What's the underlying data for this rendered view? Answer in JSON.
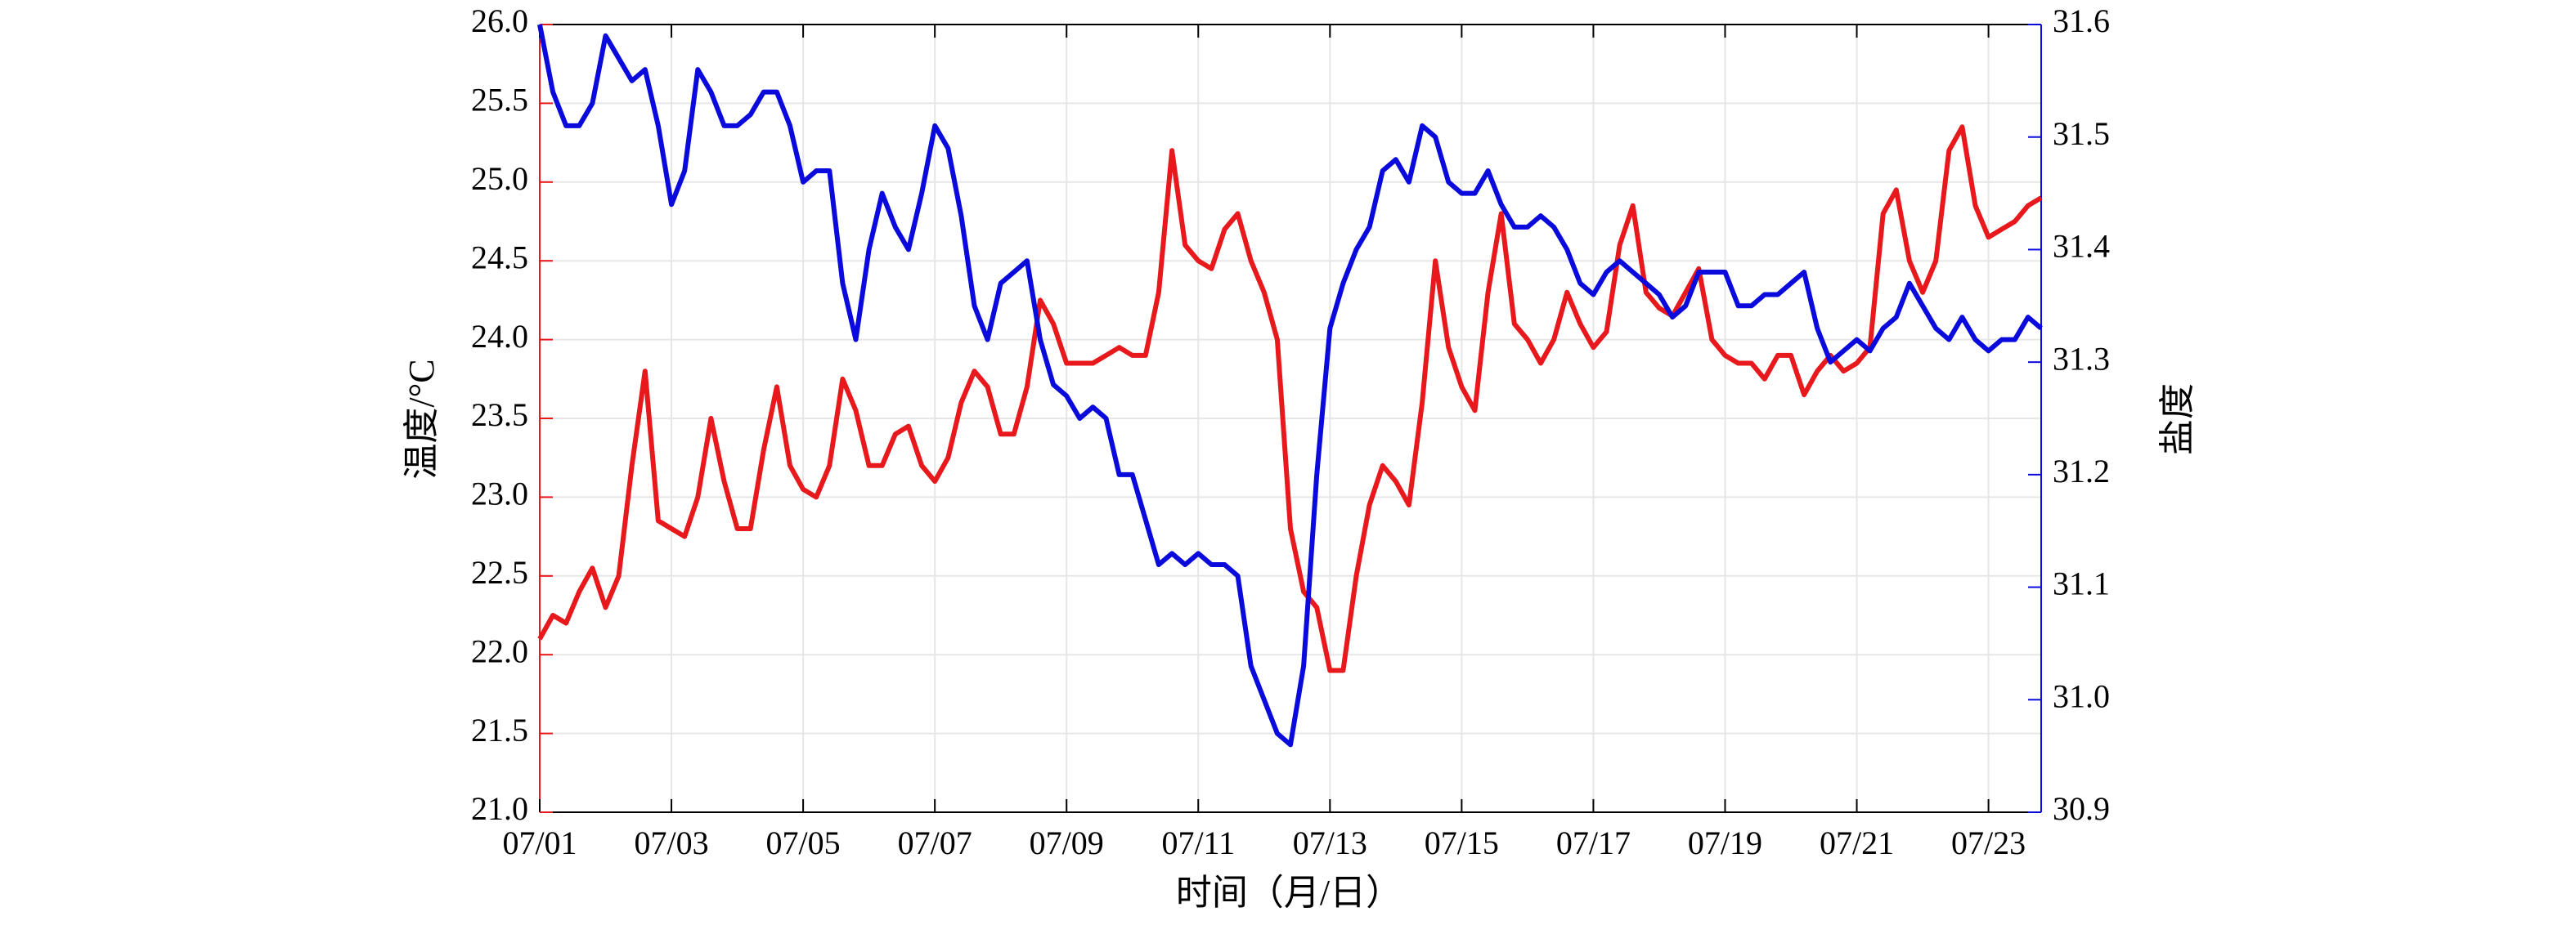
{
  "chart_data": {
    "type": "line",
    "x_label": "时间（月/日）",
    "y_label": "温度/°C",
    "y2_label": "盐度",
    "x": [
      1,
      1.2,
      1.4,
      1.6,
      1.8,
      2,
      2.2,
      2.4,
      2.6,
      2.8,
      3,
      3.2,
      3.4,
      3.6,
      3.8,
      4,
      4.2,
      4.4,
      4.6,
      4.8,
      5,
      5.2,
      5.4,
      5.6,
      5.8,
      6,
      6.2,
      6.4,
      6.6,
      6.8,
      7,
      7.2,
      7.4,
      7.6,
      7.8,
      8,
      8.2,
      8.4,
      8.6,
      8.8,
      9,
      9.2,
      9.4,
      9.6,
      9.8,
      10,
      10.2,
      10.4,
      10.6,
      10.8,
      11,
      11.2,
      11.4,
      11.6,
      11.8,
      12,
      12.2,
      12.4,
      12.6,
      12.8,
      13,
      13.2,
      13.4,
      13.6,
      13.8,
      14,
      14.2,
      14.4,
      14.6,
      14.8,
      15,
      15.2,
      15.4,
      15.6,
      15.8,
      16,
      16.2,
      16.4,
      16.6,
      16.8,
      17,
      17.2,
      17.4,
      17.6,
      17.8,
      18,
      18.2,
      18.4,
      18.6,
      18.8,
      19,
      19.2,
      19.4,
      19.6,
      19.8,
      20,
      20.2,
      20.4,
      20.6,
      20.8,
      21,
      21.2,
      21.4,
      21.6,
      21.8,
      22,
      22.2,
      22.4,
      22.6,
      22.8,
      23,
      23.2,
      23.4,
      23.6,
      23.8
    ],
    "series": [
      {
        "name": "温度",
        "color": "#e8191c",
        "values": [
          22.1,
          22.25,
          22.2,
          22.4,
          22.55,
          22.3,
          22.5,
          23.2,
          23.8,
          22.85,
          22.8,
          22.75,
          23.0,
          23.5,
          23.1,
          22.8,
          22.8,
          23.3,
          23.7,
          23.2,
          23.05,
          23.0,
          23.2,
          23.75,
          23.55,
          23.2,
          23.2,
          23.4,
          23.45,
          23.2,
          23.1,
          23.25,
          23.6,
          23.8,
          23.7,
          23.4,
          23.4,
          23.7,
          24.25,
          24.1,
          23.85,
          23.85,
          23.85,
          23.9,
          23.95,
          23.9,
          23.9,
          24.3,
          25.2,
          24.6,
          24.5,
          24.45,
          24.7,
          24.8,
          24.5,
          24.3,
          24.0,
          22.8,
          22.4,
          22.3,
          21.9,
          21.9,
          22.5,
          22.95,
          23.2,
          23.1,
          22.95,
          23.6,
          24.5,
          23.95,
          23.7,
          23.55,
          24.3,
          24.8,
          24.1,
          24.0,
          23.85,
          24.0,
          24.3,
          24.1,
          23.95,
          24.05,
          24.6,
          24.85,
          24.3,
          24.2,
          24.15,
          24.3,
          24.45,
          24.0,
          23.9,
          23.85,
          23.85,
          23.75,
          23.9,
          23.9,
          23.65,
          23.8,
          23.9,
          23.8,
          23.85,
          23.95,
          24.8,
          24.95,
          24.5,
          24.3,
          24.5,
          25.2,
          25.35,
          24.85,
          24.65,
          24.7,
          24.75,
          24.85,
          24.9
        ]
      },
      {
        "name": "盐度",
        "color": "#0a0adc",
        "axis": "y2",
        "values": [
          31.6,
          31.54,
          31.51,
          31.51,
          31.53,
          31.59,
          31.57,
          31.55,
          31.56,
          31.51,
          31.44,
          31.47,
          31.56,
          31.54,
          31.51,
          31.51,
          31.52,
          31.54,
          31.54,
          31.51,
          31.46,
          31.47,
          31.47,
          31.37,
          31.32,
          31.4,
          31.45,
          31.42,
          31.4,
          31.45,
          31.51,
          31.49,
          31.43,
          31.35,
          31.32,
          31.37,
          31.38,
          31.39,
          31.32,
          31.28,
          31.27,
          31.25,
          31.26,
          31.25,
          31.2,
          31.2,
          31.16,
          31.12,
          31.13,
          31.12,
          31.13,
          31.12,
          31.12,
          31.11,
          31.03,
          31.0,
          30.97,
          30.96,
          31.03,
          31.2,
          31.33,
          31.37,
          31.4,
          31.42,
          31.47,
          31.48,
          31.46,
          31.51,
          31.5,
          31.46,
          31.45,
          31.45,
          31.47,
          31.44,
          31.42,
          31.42,
          31.43,
          31.42,
          31.4,
          31.37,
          31.36,
          31.38,
          31.39,
          31.38,
          31.37,
          31.36,
          31.34,
          31.35,
          31.38,
          31.38,
          31.38,
          31.35,
          31.35,
          31.36,
          31.36,
          31.37,
          31.38,
          31.33,
          31.3,
          31.31,
          31.32,
          31.31,
          31.33,
          31.34,
          31.37,
          31.35,
          31.33,
          31.32,
          31.34,
          31.32,
          31.31,
          31.32,
          31.32,
          31.34,
          31.33
        ]
      }
    ],
    "xlim": [
      1,
      23.8
    ],
    "xticks": [
      {
        "value": 1,
        "label": "07/01"
      },
      {
        "value": 3,
        "label": "07/03"
      },
      {
        "value": 5,
        "label": "07/05"
      },
      {
        "value": 7,
        "label": "07/07"
      },
      {
        "value": 9,
        "label": "07/09"
      },
      {
        "value": 11,
        "label": "07/11"
      },
      {
        "value": 13,
        "label": "07/13"
      },
      {
        "value": 15,
        "label": "07/15"
      },
      {
        "value": 17,
        "label": "07/17"
      },
      {
        "value": 19,
        "label": "07/19"
      },
      {
        "value": 21,
        "label": "07/21"
      },
      {
        "value": 23,
        "label": "07/23"
      }
    ],
    "ylim": [
      21,
      26
    ],
    "yticks": [
      {
        "value": 21,
        "label": "21.0"
      },
      {
        "value": 21.5,
        "label": "21.5"
      },
      {
        "value": 22,
        "label": "22.0"
      },
      {
        "value": 22.5,
        "label": "22.5"
      },
      {
        "value": 23,
        "label": "23.0"
      },
      {
        "value": 23.5,
        "label": "23.5"
      },
      {
        "value": 24,
        "label": "24.0"
      },
      {
        "value": 24.5,
        "label": "24.5"
      },
      {
        "value": 25,
        "label": "25.0"
      },
      {
        "value": 25.5,
        "label": "25.5"
      },
      {
        "value": 26,
        "label": "26.0"
      }
    ],
    "y2lim": [
      30.9,
      31.6
    ],
    "y2ticks": [
      {
        "value": 30.9,
        "label": "30.9"
      },
      {
        "value": 31,
        "label": "31.0"
      },
      31.1,
      31.2,
      31.3,
      31.4,
      31.5,
      31.6
    ],
    "grid": true
  }
}
